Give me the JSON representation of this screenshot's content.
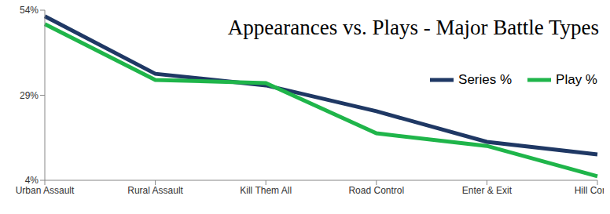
{
  "chart_data": {
    "type": "line",
    "title": "Appearances vs. Plays - Major Battle Types",
    "categories": [
      "Urban Assault",
      "Rural Assault",
      "Kill Them All",
      "Road Control",
      "Enter & Exit",
      "Hill Control"
    ],
    "series": [
      {
        "name": "Series %",
        "color": "#1f3864",
        "values": [
          52.2,
          35.3,
          31.9,
          24.3,
          15.3,
          11.6
        ]
      },
      {
        "name": "Play %",
        "color": "#1fb54a",
        "values": [
          49.9,
          33.5,
          32.6,
          17.8,
          14.1,
          5.2
        ]
      }
    ],
    "ylim": [
      4,
      54
    ],
    "yticks": [
      {
        "value": 4,
        "label": "4%"
      },
      {
        "value": 29,
        "label": "29%"
      },
      {
        "value": 54,
        "label": "54%"
      }
    ],
    "grid": false,
    "legend": "upper right"
  }
}
